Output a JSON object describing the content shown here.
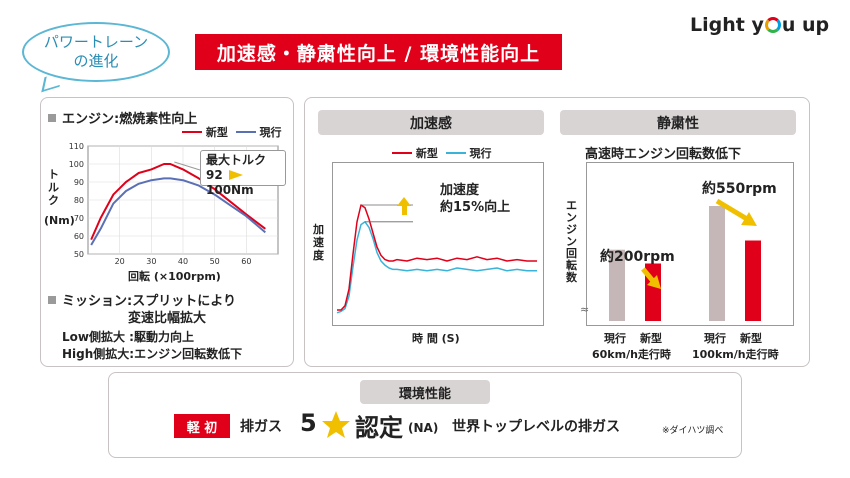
{
  "header": {
    "bubble_line1": "パワートレーン",
    "bubble_line2": "の進化",
    "title": "加速感・静粛性向上 / 環境性能向上",
    "logo_a": "Light y",
    "logo_b": "u up"
  },
  "engine": {
    "heading": "エンジン:燃焼素性向上",
    "legend_new": "新型",
    "legend_current": "現行",
    "callout_title": "最大トルク",
    "callout_from": "92",
    "callout_to": "100Nm"
  },
  "mission": {
    "heading": "ミッション:スプリットにより",
    "heading2": "変速比幅拡大",
    "low": "Low側拡大 :駆動力向上",
    "high": "High側拡大:エンジン回転数低下"
  },
  "accel": {
    "title": "加速感",
    "legend_new": "新型",
    "legend_current": "現行",
    "ylabel": "加速度",
    "xlabel": "時 間 (S)",
    "annotation1": "加速度",
    "annotation2": "約15%向上"
  },
  "quiet": {
    "title": "静粛性",
    "subtitle": "高速時エンジン回転数低下",
    "ylabel": "エンジン回転数",
    "ann_60": "約200rpm",
    "ann_100": "約550rpm",
    "break_mark": "≈"
  },
  "env": {
    "title": "環境性能",
    "badge": "軽 初",
    "gas": "排ガス",
    "five": "5",
    "cert": "認定",
    "na": "(NA)",
    "world": "世界トップレベルの排ガス",
    "note": "※ダイハツ調べ"
  },
  "colors": {
    "new": "#e0001a",
    "current": "#5b6fb5",
    "accel_current": "#3bb3d8",
    "bar_current": "#c5b7b7",
    "arrow": "#f0c000"
  },
  "chart_data": [
    {
      "type": "line",
      "title": "",
      "xlabel": "回転 (×100rpm)",
      "ylabel": "トルク (Nm)",
      "xlim": [
        10,
        70
      ],
      "ylim": [
        50,
        110
      ],
      "xticks": [
        20,
        30,
        40,
        50,
        60
      ],
      "yticks": [
        50,
        60,
        70,
        80,
        90,
        100,
        110
      ],
      "series": [
        {
          "name": "新型",
          "color": "#e0001a",
          "x": [
            11,
            14,
            18,
            22,
            26,
            30,
            34,
            36,
            40,
            45,
            50,
            55,
            60,
            66
          ],
          "y": [
            58,
            70,
            83,
            90,
            95,
            97,
            100,
            100,
            97,
            92,
            86,
            79,
            72,
            64
          ]
        },
        {
          "name": "現行",
          "color": "#5b6fb5",
          "x": [
            11,
            14,
            18,
            22,
            26,
            30,
            34,
            36,
            40,
            45,
            50,
            55,
            60,
            66
          ],
          "y": [
            55,
            64,
            78,
            85,
            89,
            91,
            92,
            92,
            91,
            88,
            83,
            77,
            71,
            62
          ]
        }
      ]
    },
    {
      "type": "line",
      "title": "加速感",
      "xlabel": "時 間 (S)",
      "ylabel": "加速度",
      "series": [
        {
          "name": "新型",
          "color": "#e0001a",
          "x": [
            0,
            2,
            4,
            6,
            8,
            10,
            12,
            14,
            16,
            18,
            20,
            22,
            24,
            26,
            28,
            30,
            35,
            40,
            45,
            50,
            55,
            60,
            65,
            70,
            75,
            80,
            85,
            90,
            95,
            100
          ],
          "y": [
            0.05,
            0.05,
            0.08,
            0.2,
            0.45,
            0.68,
            0.8,
            0.78,
            0.7,
            0.6,
            0.5,
            0.44,
            0.41,
            0.4,
            0.4,
            0.41,
            0.4,
            0.42,
            0.41,
            0.42,
            0.4,
            0.42,
            0.41,
            0.43,
            0.41,
            0.42,
            0.4,
            0.41,
            0.4,
            0.4
          ]
        },
        {
          "name": "現行",
          "color": "#3bb3d8",
          "x": [
            0,
            2,
            4,
            6,
            8,
            10,
            12,
            14,
            16,
            18,
            20,
            22,
            24,
            26,
            28,
            30,
            35,
            40,
            45,
            50,
            55,
            60,
            65,
            70,
            75,
            80,
            85,
            90,
            95,
            100
          ],
          "y": [
            0.03,
            0.04,
            0.06,
            0.15,
            0.36,
            0.55,
            0.66,
            0.68,
            0.64,
            0.56,
            0.46,
            0.4,
            0.37,
            0.35,
            0.34,
            0.34,
            0.33,
            0.34,
            0.33,
            0.34,
            0.33,
            0.35,
            0.34,
            0.33,
            0.34,
            0.35,
            0.33,
            0.34,
            0.33,
            0.33
          ]
        }
      ]
    },
    {
      "type": "bar",
      "title": "高速時エンジン回転数低下",
      "ylabel": "エンジン回転数",
      "groups": [
        "60km/h走行時",
        "100km/h走行時"
      ],
      "categories": [
        "現行",
        "新型"
      ],
      "series": [
        {
          "name": "現行",
          "color": "#c5b7b7",
          "values": [
            0.62,
            1.0
          ]
        },
        {
          "name": "新型",
          "color": "#e0001a",
          "values": [
            0.5,
            0.7
          ]
        }
      ],
      "annotations": [
        "約200rpm",
        "約550rpm"
      ]
    }
  ]
}
